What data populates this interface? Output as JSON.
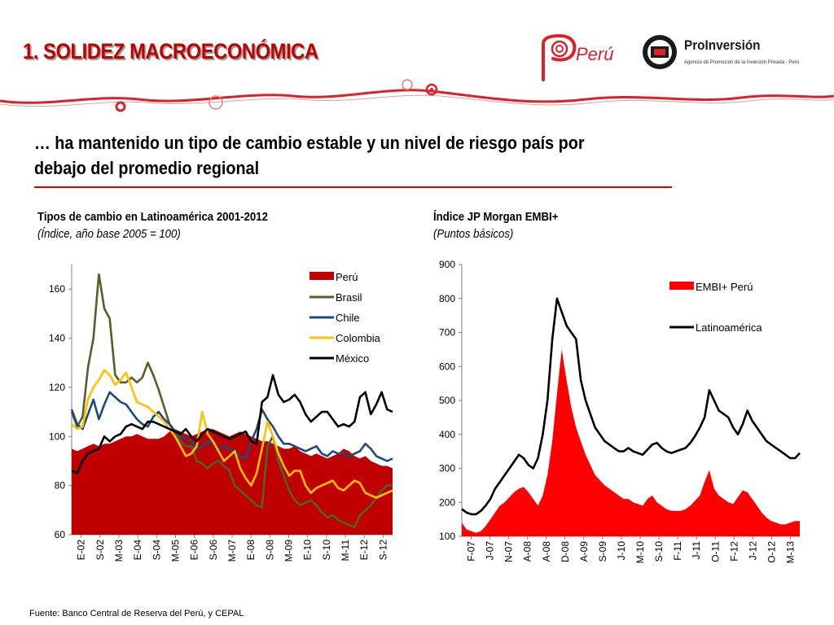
{
  "header": {
    "title": "1. SOLIDEZ MACROECONÓMICA",
    "subtitle": "… ha mantenido un tipo de cambio estable y un nivel de riesgo país por debajo del promedio regional",
    "logo_peru_text": "Perú",
    "logo_proinversion_name": "ProInversión",
    "logo_proinversion_tagline": "Agencia de Promoción de la Inversión Privada - Perú"
  },
  "colors": {
    "accent_red": "#c00000",
    "rule_red": "#e00000",
    "peru_area": "#c00000",
    "brasil": "#4f6228",
    "chile": "#1f497d",
    "colombia": "#ffc000",
    "mexico": "#000000",
    "embi_peru": "#ff0000",
    "latam": "#000000"
  },
  "footer": {
    "source": "Fuente: Banco Central de Reserva del Perú, y CEPAL"
  },
  "chart_data": [
    {
      "type": "line",
      "title": "Tipos de cambio en Latinoamérica 2001-2012",
      "subtitle": "(Índice, año base 2005 = 100)",
      "x_tick_labels": [
        "E-02",
        "S-02",
        "M-03",
        "E-04",
        "S-04",
        "M-05",
        "E-06",
        "S-06",
        "M-07",
        "E-08",
        "S-08",
        "M-09",
        "E-10",
        "S-10",
        "M-11",
        "E-12",
        "S-12"
      ],
      "ylim": [
        60,
        170
      ],
      "yticks": [
        60,
        80,
        100,
        120,
        140,
        160
      ],
      "legend": "top-right",
      "series": [
        {
          "name": "Perú",
          "style": "area",
          "color": "#c00000",
          "values": [
            95,
            94,
            95,
            96,
            97,
            96,
            97,
            97,
            98,
            99,
            100,
            100,
            101,
            100,
            99,
            99,
            99,
            100,
            102,
            103,
            102,
            101,
            100,
            101,
            102,
            103,
            103,
            102,
            101,
            100,
            101,
            102,
            101,
            100,
            99,
            98,
            98,
            97,
            96,
            95,
            95,
            96,
            94,
            93,
            92,
            93,
            92,
            91,
            92,
            93,
            95,
            94,
            92,
            91,
            92,
            90,
            89,
            88,
            88,
            87
          ]
        },
        {
          "name": "Brasil",
          "style": "line",
          "color": "#4f6228",
          "values": [
            110,
            104,
            108,
            128,
            140,
            166,
            152,
            148,
            125,
            122,
            122,
            124,
            122,
            124,
            130,
            125,
            119,
            112,
            105,
            102,
            98,
            96,
            96,
            90,
            89,
            87,
            89,
            90,
            88,
            86,
            80,
            78,
            76,
            74,
            72,
            71,
            96,
            100,
            90,
            84,
            78,
            74,
            72,
            73,
            74,
            72,
            69,
            67,
            68,
            66,
            65,
            64,
            63,
            68,
            70,
            72,
            75,
            78,
            80,
            80
          ]
        },
        {
          "name": "Chile",
          "style": "line",
          "color": "#1f497d",
          "values": [
            111,
            105,
            103,
            109,
            115,
            107,
            113,
            118,
            116,
            114,
            113,
            110,
            107,
            105,
            104,
            108,
            110,
            107,
            105,
            102,
            100,
            99,
            98,
            95,
            96,
            98,
            97,
            95,
            96,
            95,
            94,
            92,
            91,
            98,
            103,
            111,
            107,
            104,
            100,
            97,
            97,
            96,
            95,
            94,
            95,
            96,
            93,
            92,
            94,
            93,
            93,
            92,
            93,
            94,
            97,
            95,
            92,
            91,
            90,
            91
          ]
        },
        {
          "name": "Colombia",
          "style": "line",
          "color": "#ffc000",
          "values": [
            105,
            103,
            104,
            115,
            120,
            123,
            127,
            125,
            121,
            123,
            126,
            120,
            114,
            113,
            112,
            110,
            108,
            106,
            103,
            100,
            96,
            92,
            93,
            96,
            110,
            101,
            98,
            94,
            90,
            92,
            94,
            87,
            83,
            80,
            85,
            95,
            106,
            100,
            93,
            88,
            84,
            86,
            86,
            80,
            77,
            79,
            80,
            81,
            82,
            79,
            78,
            80,
            82,
            81,
            77,
            76,
            75,
            76,
            77,
            78
          ]
        },
        {
          "name": "México",
          "style": "line",
          "color": "#000000",
          "values": [
            86,
            85,
            90,
            93,
            94,
            95,
            100,
            98,
            100,
            101,
            104,
            105,
            104,
            103,
            106,
            106,
            105,
            104,
            103,
            102,
            101,
            103,
            100,
            98,
            101,
            103,
            102,
            101,
            100,
            99,
            100,
            101,
            102,
            98,
            97,
            114,
            116,
            125,
            117,
            114,
            115,
            117,
            114,
            109,
            106,
            108,
            110,
            110,
            107,
            104,
            105,
            104,
            106,
            116,
            118,
            109,
            113,
            118,
            111,
            110
          ]
        }
      ]
    },
    {
      "type": "line",
      "title": "Índice JP Morgan EMBI+",
      "subtitle": "(Puntos básicos)",
      "x_tick_labels": [
        "F-07",
        "J-07",
        "N-07",
        "A-08",
        "A-08",
        "D-08",
        "A-09",
        "S-09",
        "J-10",
        "M-10",
        "S-10",
        "F-11",
        "J-11",
        "O-11",
        "F-12",
        "J-12",
        "O-12",
        "M-13"
      ],
      "ylim": [
        100,
        900
      ],
      "yticks": [
        100,
        200,
        300,
        400,
        500,
        600,
        700,
        800,
        900
      ],
      "legend": "top-right",
      "series": [
        {
          "name": "EMBI+ Perú",
          "style": "area",
          "color": "#ff0000",
          "values": [
            140,
            120,
            115,
            110,
            115,
            130,
            150,
            170,
            190,
            200,
            215,
            230,
            240,
            245,
            230,
            210,
            190,
            220,
            280,
            380,
            520,
            650,
            560,
            480,
            420,
            380,
            340,
            310,
            280,
            265,
            250,
            240,
            230,
            220,
            210,
            210,
            200,
            195,
            190,
            210,
            220,
            200,
            190,
            180,
            175,
            175,
            175,
            180,
            190,
            205,
            220,
            260,
            295,
            240,
            220,
            210,
            200,
            195,
            215,
            235,
            230,
            210,
            190,
            170,
            155,
            145,
            140,
            135,
            135,
            140,
            145,
            145
          ]
        },
        {
          "name": "Latinoamérica",
          "style": "line",
          "color": "#000000",
          "values": [
            180,
            170,
            165,
            165,
            175,
            190,
            210,
            240,
            260,
            280,
            300,
            320,
            340,
            330,
            310,
            300,
            330,
            400,
            500,
            680,
            800,
            760,
            720,
            700,
            680,
            560,
            500,
            460,
            420,
            400,
            380,
            370,
            360,
            350,
            350,
            360,
            350,
            345,
            340,
            355,
            370,
            375,
            360,
            350,
            345,
            350,
            355,
            360,
            375,
            395,
            420,
            450,
            530,
            500,
            470,
            460,
            450,
            420,
            400,
            430,
            470,
            440,
            420,
            400,
            380,
            370,
            360,
            350,
            340,
            330,
            330,
            345
          ]
        }
      ]
    }
  ]
}
